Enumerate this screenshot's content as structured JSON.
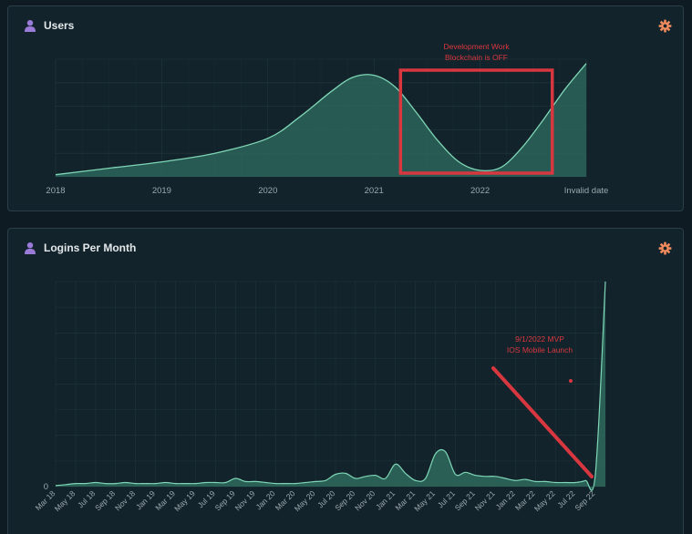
{
  "panels": {
    "users": {
      "title": "Users",
      "settings_icon": "gear-icon",
      "title_icon": "user-icon"
    },
    "logins": {
      "title": "Logins Per Month",
      "settings_icon": "gear-icon",
      "title_icon": "user-icon"
    }
  },
  "colors": {
    "background": "#0f1b22",
    "panel": "#13232b",
    "grid": "#2b4a4a",
    "area_fill": "#2f6e60",
    "area_line": "#7fd6b6",
    "annotation": "#d9373f",
    "icon_user": "#9a7bd8",
    "icon_gear": "#f08a5d",
    "text": "#e2e8ea",
    "tick": "#9aa9ad"
  },
  "chart_data": [
    {
      "type": "area",
      "title": "Users",
      "x_tick_labels": [
        "2018",
        "2019",
        "2020",
        "2021",
        "2022",
        "Invalid date"
      ],
      "x": [
        2018,
        2018.5,
        2019,
        2019.5,
        2020,
        2020.3,
        2020.6,
        2020.8,
        2021,
        2021.2,
        2021.4,
        2021.6,
        2021.8,
        2022,
        2022.2,
        2022.4,
        2022.6,
        2022.8,
        2023
      ],
      "values": [
        2,
        8,
        14,
        22,
        36,
        56,
        80,
        93,
        95,
        84,
        60,
        34,
        14,
        6,
        9,
        28,
        54,
        82,
        106
      ],
      "ylim": [
        0,
        110
      ],
      "grid": true,
      "annotations": [
        {
          "text_lines": [
            "Development Work",
            "Blockchain is OFF"
          ],
          "kind": "box",
          "x_range": [
            2021.25,
            2022.68
          ]
        }
      ]
    },
    {
      "type": "area",
      "title": "Logins Per Month",
      "categories": [
        "Mar 18",
        "Apr 18",
        "May 18",
        "Jun 18",
        "Jul 18",
        "Aug 18",
        "Sep 18",
        "Oct 18",
        "Nov 18",
        "Dec 18",
        "Jan 19",
        "Feb 19",
        "Mar 19",
        "Apr 19",
        "May 19",
        "Jun 19",
        "Jul 19",
        "Aug 19",
        "Sep 19",
        "Oct 19",
        "Nov 19",
        "Dec 19",
        "Jan 20",
        "Feb 20",
        "Mar 20",
        "Apr 20",
        "May 20",
        "Jun 20",
        "Jul 20",
        "Aug 20",
        "Sep 20",
        "Oct 20",
        "Nov 20",
        "Dec 20",
        "Jan 21",
        "Feb 21",
        "Mar 21",
        "Apr 21",
        "May 21",
        "Jun 21",
        "Jul 21",
        "Aug 21",
        "Sep 21",
        "Oct 21",
        "Nov 21",
        "Dec 21",
        "Jan 22",
        "Feb 22",
        "Mar 22",
        "Apr 22",
        "May 22",
        "Jun 22",
        "Jul 22",
        "Aug 22",
        "Sep 22",
        "Oct 22"
      ],
      "x_tick_labels": [
        "Mar 18",
        "May 18",
        "Jul 18",
        "Sep 18",
        "Nov 18",
        "Jan 19",
        "Mar 19",
        "May 19",
        "Jul 19",
        "Sep 19",
        "Nov 19",
        "Jan 20",
        "Mar 20",
        "May 20",
        "Jul 20",
        "Sep 20",
        "Nov 20",
        "Jan 21",
        "Mar 21",
        "May 21",
        "Jul 21",
        "Sep 21",
        "Nov 21",
        "Jan 22",
        "Mar 22",
        "May 22",
        "Jul 22",
        "Sep 22"
      ],
      "y_tick_labels": [
        "0"
      ],
      "values": [
        1,
        2,
        3,
        3,
        4,
        3,
        3,
        4,
        3,
        3,
        3,
        4,
        3,
        3,
        3,
        4,
        4,
        4,
        8,
        5,
        5,
        4,
        3,
        3,
        3,
        4,
        5,
        6,
        12,
        13,
        8,
        10,
        11,
        8,
        22,
        13,
        6,
        8,
        32,
        34,
        12,
        14,
        11,
        10,
        10,
        8,
        6,
        7,
        5,
        5,
        4,
        4,
        4,
        6,
        12,
        200
      ],
      "ylim": [
        0,
        200
      ],
      "grid": true,
      "annotations": [
        {
          "text_lines": [
            "9/1/2022 MVP",
            "IOS Mobile Launch"
          ],
          "kind": "arrow-line"
        }
      ]
    }
  ]
}
